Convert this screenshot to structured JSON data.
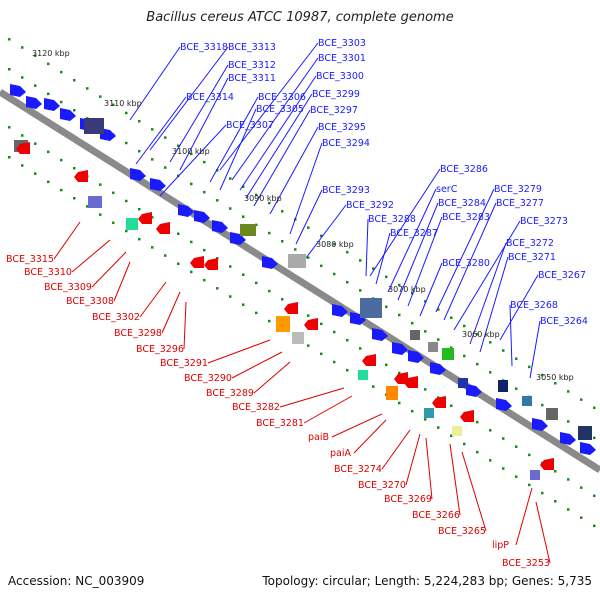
{
  "title": "Bacillus cereus ATCC 10987, complete genome",
  "accession": "Accession: NC_003909",
  "summary": "Topology: circular; Length: 5,224,283 bp; Genes: 5,735",
  "kbp_ticks": [
    "3120 kbp",
    "3110 kbp",
    "3100 kbp",
    "3090 kbp",
    "3080 kbp",
    "3070 kbp",
    "3060 kbp",
    "3050 kbp"
  ],
  "blue_labels": [
    "BCE_3318",
    "BCE_3313",
    "BCE_3312",
    "BCE_3311",
    "BCE_3314",
    "BCE_3307",
    "BCE_3306",
    "BCE_3305",
    "BCE_3303",
    "BCE_3301",
    "BCE_3300",
    "BCE_3299",
    "BCE_3297",
    "BCE_3295",
    "BCE_3294",
    "BCE_3293",
    "BCE_3292",
    "BCE_3288",
    "BCE_3287",
    "BCE_3286",
    "serC",
    "BCE_3284",
    "BCE_3283",
    "BCE_3280",
    "BCE_3279",
    "BCE_3277",
    "BCE_3273",
    "BCE_3272",
    "BCE_3271",
    "BCE_3267",
    "BCE_3268",
    "BCE_3264"
  ],
  "red_labels": [
    "BCE_3315",
    "BCE_3310",
    "BCE_3309",
    "BCE_3308",
    "BCE_3302",
    "BCE_3298",
    "BCE_3296",
    "BCE_3291",
    "BCE_3290",
    "BCE_3289",
    "BCE_3282",
    "BCE_3281",
    "paiB",
    "paiA",
    "BCE_3274",
    "BCE_3270",
    "BCE_3269",
    "BCE_3266",
    "BCE_3265",
    "lipP",
    "BCE_3253"
  ],
  "colors": {
    "forward": "#1a1aff",
    "reverse": "#ee0000",
    "backbone": "#888888",
    "tick": "#1a8a1a"
  }
}
